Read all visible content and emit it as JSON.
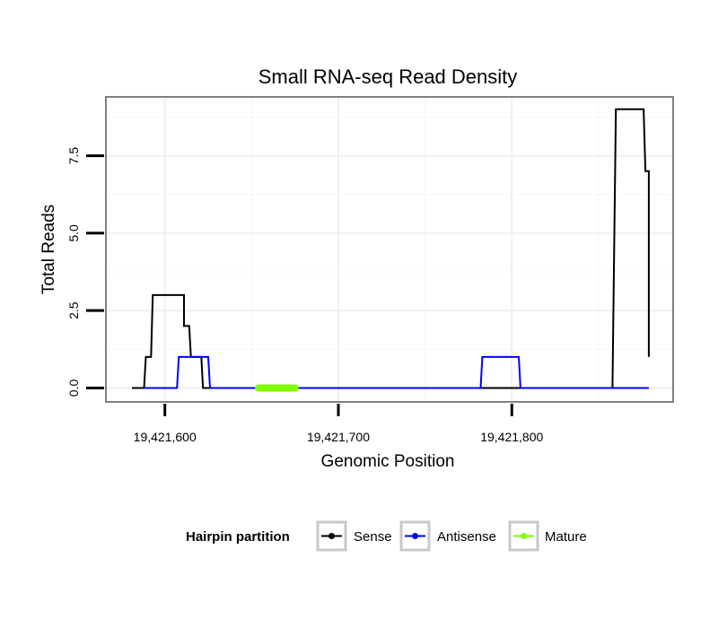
{
  "chart_data": {
    "type": "line",
    "title": "Small RNA-seq Read Density",
    "xlabel": "Genomic Position",
    "ylabel": "Total Reads",
    "xlim": [
      19421566,
      19421893
    ],
    "ylim": [
      -0.45,
      9.4
    ],
    "x_ticks": [
      19421600,
      19421700,
      19421800
    ],
    "x_tick_labels": [
      "19,421,600",
      "19,421,700",
      "19,421,800"
    ],
    "y_ticks": [
      0,
      2.5,
      5,
      7.5
    ],
    "y_tick_labels": [
      "0.0",
      "2.5",
      "5.0",
      "7.5"
    ],
    "grid": true,
    "legend": {
      "title": "Hairpin partition",
      "position": "bottom",
      "entries": [
        "Sense",
        "Antisense",
        "Mature"
      ]
    },
    "series": [
      {
        "name": "Sense",
        "color": "#000000",
        "x": [
          19421581,
          19421588,
          19421589,
          19421592,
          19421593,
          19421611,
          19421611,
          19421614,
          19421615,
          19421621,
          19421622,
          19421627,
          19421858,
          19421860,
          19421876,
          19421877,
          19421877,
          19421879,
          19421879
        ],
        "y": [
          0,
          0,
          1,
          1,
          3,
          3,
          2,
          2,
          1,
          1,
          0,
          0,
          0,
          9,
          9,
          7,
          7,
          7,
          1
        ]
      },
      {
        "name": "Antisense",
        "color": "#0000ff",
        "x": [
          19421588,
          19421607,
          19421608,
          19421625,
          19421626,
          19421782,
          19421783,
          19421804,
          19421805,
          19421879
        ],
        "y": [
          0,
          0,
          1,
          1,
          0,
          0,
          1,
          1,
          0,
          0
        ]
      },
      {
        "name": "Mature",
        "color": "#7fff00",
        "x": [
          19421654,
          19421675
        ],
        "y": [
          0,
          0
        ]
      }
    ]
  }
}
